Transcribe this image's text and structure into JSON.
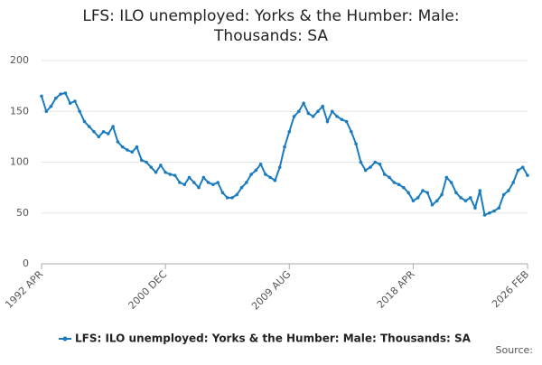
{
  "chart_data": {
    "type": "line",
    "title": "LFS: ILO unemployed: Yorks & the Humber: Male: Thousands: SA",
    "source": "Source:",
    "categories": [
      "1992 APR",
      null,
      null,
      null,
      null,
      null,
      null,
      null,
      null,
      null,
      null,
      null,
      null,
      null,
      null,
      null,
      null,
      null,
      null,
      null,
      null,
      null,
      null,
      null,
      null,
      null,
      "2000 DEC",
      null,
      null,
      null,
      null,
      null,
      null,
      null,
      null,
      null,
      null,
      null,
      null,
      null,
      null,
      null,
      null,
      null,
      null,
      null,
      null,
      null,
      null,
      null,
      null,
      null,
      "2009 AUG",
      null,
      null,
      null,
      null,
      null,
      null,
      null,
      null,
      null,
      null,
      null,
      null,
      null,
      null,
      null,
      null,
      null,
      null,
      null,
      null,
      null,
      null,
      null,
      null,
      null,
      "2018 APR",
      null,
      null,
      null,
      null,
      null,
      null,
      null,
      null,
      null,
      null,
      null,
      null,
      null,
      null,
      null,
      null,
      null,
      null,
      null,
      null,
      null,
      null,
      null,
      "2026 FEB"
    ],
    "series": [
      {
        "name": "LFS: ILO unemployed: Yorks & the Humber: Male: Thousands: SA",
        "color": "#1a7bbf",
        "values": [
          165,
          150,
          155,
          163,
          167,
          168,
          158,
          160,
          150,
          140,
          135,
          130,
          125,
          130,
          128,
          135,
          120,
          115,
          112,
          110,
          115,
          102,
          100,
          95,
          90,
          97,
          90,
          88,
          87,
          80,
          78,
          85,
          80,
          75,
          85,
          80,
          78,
          80,
          70,
          65,
          65,
          68,
          75,
          80,
          88,
          92,
          98,
          88,
          85,
          82,
          95,
          115,
          130,
          145,
          150,
          158,
          148,
          145,
          150,
          155,
          140,
          150,
          145,
          142,
          140,
          130,
          118,
          100,
          92,
          95,
          100,
          98,
          88,
          85,
          80,
          78,
          75,
          70,
          62,
          65,
          72,
          70,
          58,
          62,
          68,
          85,
          80,
          70,
          65,
          62,
          65,
          55,
          72,
          48,
          50,
          52,
          55,
          68,
          72,
          80,
          92,
          95,
          87
        ]
      }
    ],
    "ylim": [
      0,
      200
    ],
    "yticks": [
      0,
      50,
      100,
      150,
      200
    ],
    "grid": true
  }
}
